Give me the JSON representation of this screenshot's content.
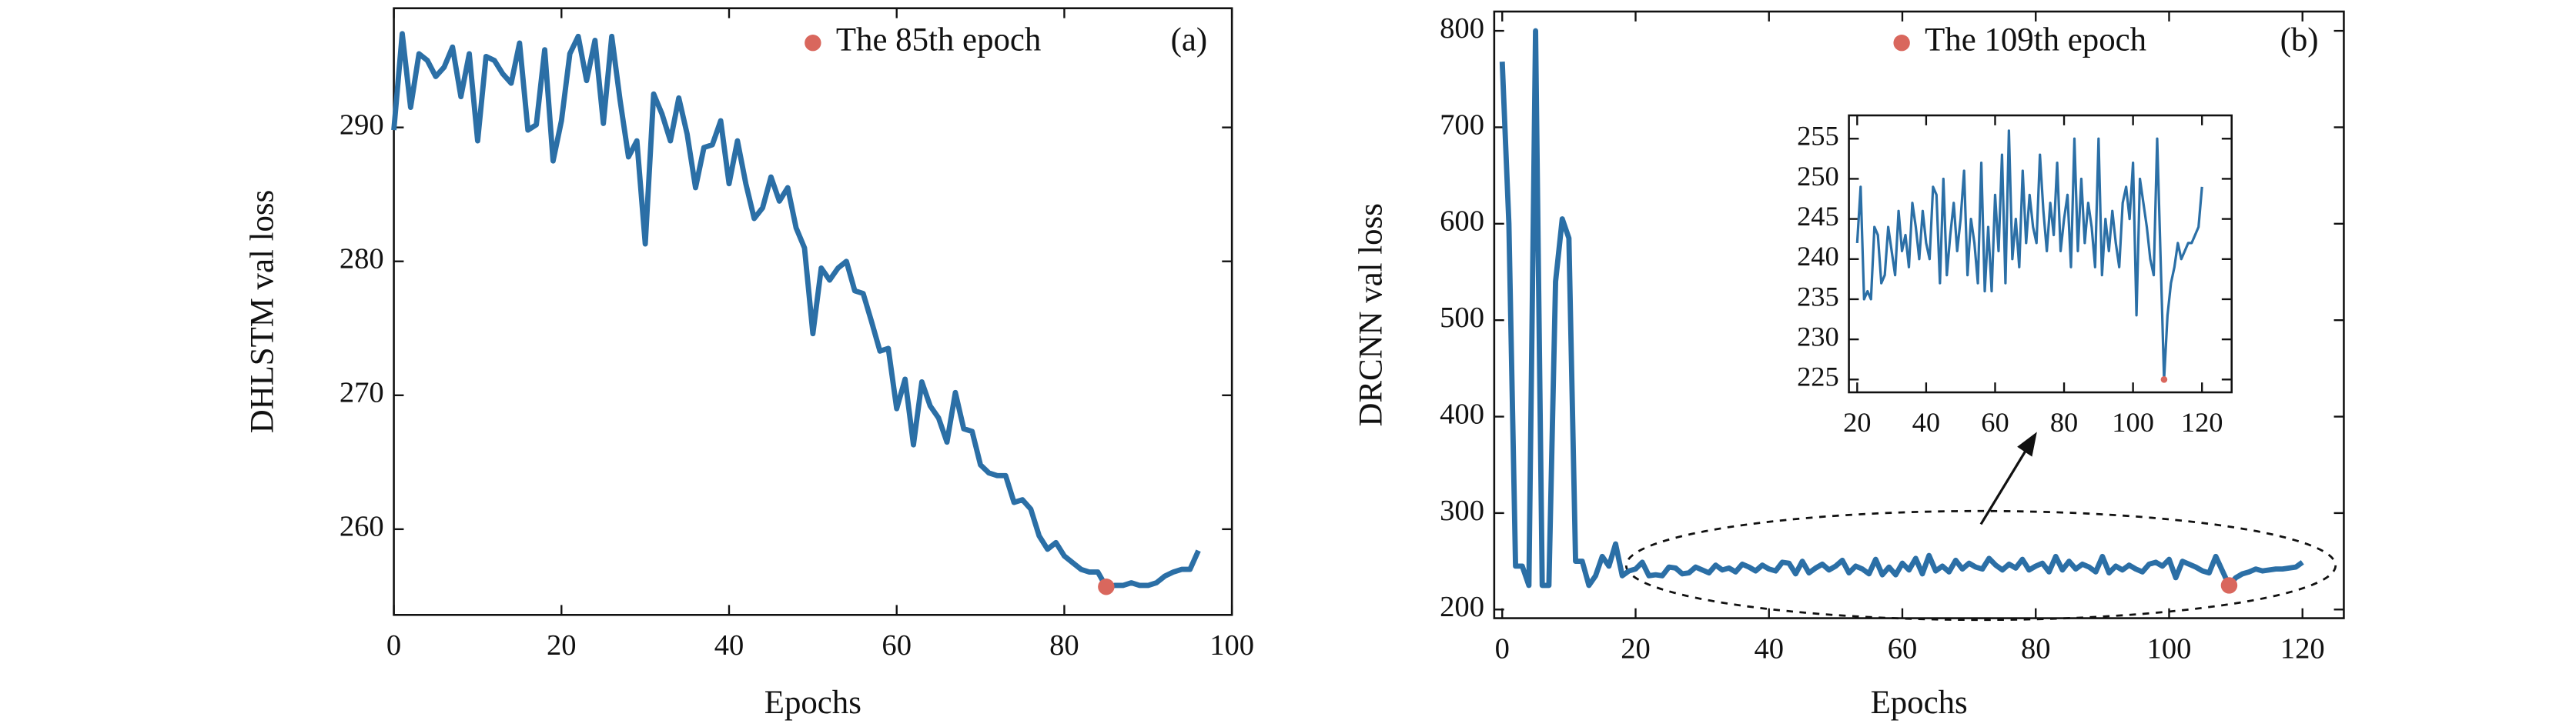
{
  "chart_data": [
    {
      "type": "line",
      "xlabel": "Epochs",
      "ylabel": "DHLSTM val loss",
      "panel_label": "(a)",
      "xlim": [
        0,
        100
      ],
      "ylim": [
        253.6,
        298.9
      ],
      "xticks": [
        0,
        20,
        40,
        60,
        80,
        100
      ],
      "yticks": [
        260,
        270,
        280,
        290
      ],
      "x": [
        0,
        1,
        2,
        3,
        4,
        5,
        6,
        7,
        8,
        9,
        10,
        11,
        12,
        13,
        14,
        15,
        16,
        17,
        18,
        19,
        20,
        21,
        22,
        23,
        24,
        25,
        26,
        27,
        28,
        29,
        30,
        31,
        32,
        33,
        34,
        35,
        36,
        37,
        38,
        39,
        40,
        41,
        42,
        43,
        44,
        45,
        46,
        47,
        48,
        49,
        50,
        51,
        52,
        53,
        54,
        55,
        56,
        57,
        58,
        59,
        60,
        61,
        62,
        63,
        64,
        65,
        66,
        67,
        68,
        69,
        70,
        71,
        72,
        73,
        74,
        75,
        76,
        77,
        78,
        79,
        80,
        81,
        82,
        83,
        84,
        85,
        86,
        87,
        88,
        89,
        90,
        91,
        92,
        93,
        94,
        95,
        96
      ],
      "series": [
        {
          "color": "#2b6fa6",
          "values": [
            289.8,
            297,
            291.5,
            295.5,
            295,
            293.8,
            294.5,
            296,
            292.3,
            295.5,
            289,
            295.3,
            295,
            294,
            293.3,
            296.3,
            289.8,
            290.2,
            295.8,
            287.5,
            290.5,
            295.5,
            296.8,
            293.5,
            296.5,
            290.3,
            296.8,
            292,
            287.8,
            289,
            281.3,
            292.5,
            291,
            289,
            292.2,
            289.5,
            285.5,
            288.5,
            288.7,
            290.5,
            285.8,
            289,
            285.8,
            283.2,
            284,
            286.3,
            284.5,
            285.5,
            282.5,
            281,
            274.6,
            279.5,
            278.6,
            279.5,
            280,
            277.8,
            277.6,
            275.5,
            273.3,
            273.5,
            269,
            271.2,
            266.3,
            271,
            269.2,
            268.3,
            266.5,
            270.2,
            267.5,
            267.3,
            264.8,
            264.2,
            264,
            264,
            262,
            262.2,
            261.5,
            259.5,
            258.5,
            259,
            258,
            257.5,
            257,
            256.8,
            256.8,
            255.7,
            255.8,
            255.8,
            256,
            255.8,
            255.8,
            256,
            256.5,
            256.8,
            257,
            257,
            258.4
          ]
        }
      ],
      "highlight": {
        "x": 85,
        "y": 255.7,
        "label": "The 85th epoch",
        "color": "#d9675d"
      }
    },
    {
      "type": "line",
      "xlabel": "Epochs",
      "ylabel": "DRCNN val loss",
      "panel_label": "(b)",
      "xlim": [
        -1.2,
        126.2
      ],
      "ylim": [
        191,
        820
      ],
      "xticks": [
        0,
        20,
        40,
        60,
        80,
        100,
        120
      ],
      "yticks": [
        200,
        300,
        400,
        500,
        600,
        700,
        800
      ],
      "x": [
        0,
        1,
        2,
        3,
        4,
        5,
        6,
        7,
        8,
        9,
        10,
        11,
        12,
        13,
        14,
        15,
        16,
        17,
        18,
        19,
        20,
        21,
        22,
        23,
        24,
        25,
        26,
        27,
        28,
        29,
        30,
        31,
        32,
        33,
        34,
        35,
        36,
        37,
        38,
        39,
        40,
        41,
        42,
        43,
        44,
        45,
        46,
        47,
        48,
        49,
        50,
        51,
        52,
        53,
        54,
        55,
        56,
        57,
        58,
        59,
        60,
        61,
        62,
        63,
        64,
        65,
        66,
        67,
        68,
        69,
        70,
        71,
        72,
        73,
        74,
        75,
        76,
        77,
        78,
        79,
        80,
        81,
        82,
        83,
        84,
        85,
        86,
        87,
        88,
        89,
        90,
        91,
        92,
        93,
        94,
        95,
        96,
        97,
        98,
        99,
        100,
        101,
        102,
        103,
        104,
        105,
        106,
        107,
        108,
        109,
        110,
        111,
        112,
        113,
        114,
        115,
        116,
        117,
        118,
        119,
        120
      ],
      "series": [
        {
          "color": "#2b6fa6",
          "values": [
            768,
            600,
            245,
            245,
            225,
            800,
            225,
            225,
            540,
            605,
            585,
            250,
            250,
            225,
            235,
            255,
            245,
            268,
            235,
            240,
            242,
            249,
            235,
            236,
            235,
            244,
            243,
            237,
            238,
            244,
            241,
            238,
            246,
            241,
            243,
            239,
            247,
            244,
            240,
            246,
            242,
            240,
            249,
            248,
            237,
            250,
            238,
            243,
            247,
            241,
            245,
            251,
            238,
            245,
            242,
            237,
            252,
            236,
            244,
            236,
            248,
            241,
            253,
            237,
            256,
            240,
            245,
            239,
            251,
            242,
            248,
            244,
            242,
            253,
            246,
            241,
            247,
            243,
            252,
            241,
            245,
            248,
            239,
            255,
            241,
            250,
            242,
            247,
            244,
            239,
            255,
            238,
            245,
            241,
            246,
            242,
            239,
            247,
            249,
            245,
            252,
            233,
            250,
            247,
            244,
            240,
            238,
            255,
            240,
            225,
            233,
            237,
            239,
            242,
            240,
            241,
            242,
            242,
            243,
            244,
            249
          ]
        }
      ],
      "highlight": {
        "x": 109,
        "y": 225,
        "label": "The 109th epoch",
        "color": "#d9675d"
      }
    },
    {
      "type": "line",
      "xlim": [
        17.6,
        128.6
      ],
      "ylim": [
        223.4,
        257.9
      ],
      "xticks": [
        20,
        40,
        60,
        80,
        100,
        120
      ],
      "yticks": [
        225,
        230,
        235,
        240,
        245,
        250,
        255
      ],
      "x": [
        20,
        21,
        22,
        23,
        24,
        25,
        26,
        27,
        28,
        29,
        30,
        31,
        32,
        33,
        34,
        35,
        36,
        37,
        38,
        39,
        40,
        41,
        42,
        43,
        44,
        45,
        46,
        47,
        48,
        49,
        50,
        51,
        52,
        53,
        54,
        55,
        56,
        57,
        58,
        59,
        60,
        61,
        62,
        63,
        64,
        65,
        66,
        67,
        68,
        69,
        70,
        71,
        72,
        73,
        74,
        75,
        76,
        77,
        78,
        79,
        80,
        81,
        82,
        83,
        84,
        85,
        86,
        87,
        88,
        89,
        90,
        91,
        92,
        93,
        94,
        95,
        96,
        97,
        98,
        99,
        100,
        101,
        102,
        103,
        104,
        105,
        106,
        107,
        108,
        109,
        110,
        111,
        112,
        113,
        114,
        115,
        116,
        117,
        118,
        119,
        120
      ],
      "series": [
        {
          "color": "#2b6fa6",
          "values": [
            242,
            249,
            235,
            236,
            235,
            244,
            243,
            237,
            238,
            244,
            241,
            238,
            246,
            241,
            243,
            239,
            247,
            244,
            240,
            246,
            242,
            240,
            249,
            248,
            237,
            250,
            238,
            243,
            247,
            241,
            245,
            251,
            238,
            245,
            242,
            237,
            252,
            236,
            244,
            236,
            248,
            241,
            253,
            237,
            256,
            240,
            245,
            239,
            251,
            242,
            248,
            244,
            242,
            253,
            246,
            241,
            247,
            243,
            252,
            241,
            245,
            248,
            239,
            255,
            241,
            250,
            242,
            247,
            244,
            239,
            255,
            238,
            245,
            241,
            246,
            242,
            239,
            247,
            249,
            245,
            252,
            233,
            250,
            247,
            244,
            240,
            238,
            255,
            240,
            225,
            233,
            237,
            239,
            242,
            240,
            241,
            242,
            242,
            243,
            244,
            249
          ]
        }
      ],
      "highlight": {
        "x": 109,
        "y": 225,
        "color": "#d9675d"
      }
    }
  ]
}
